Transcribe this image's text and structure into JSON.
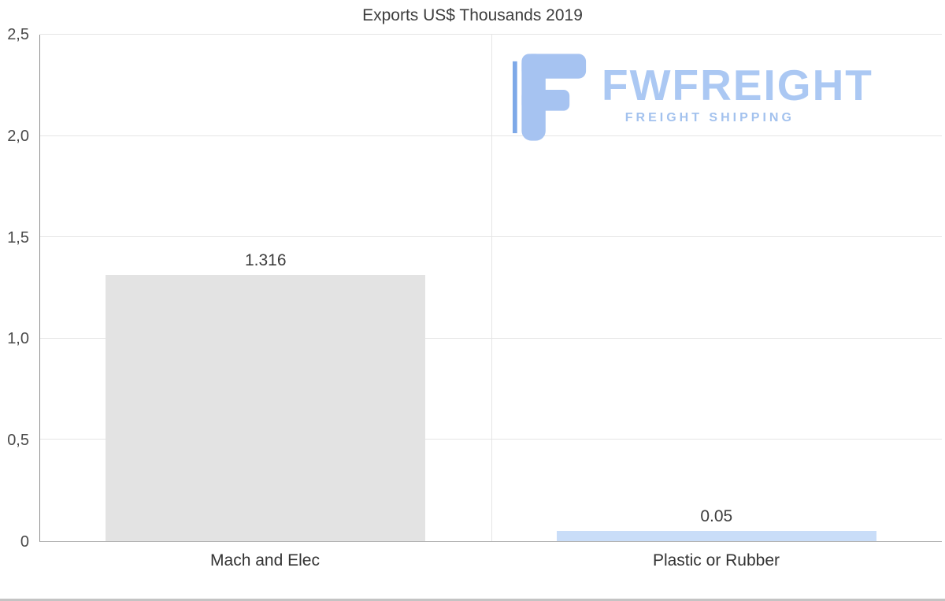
{
  "chart_data": {
    "type": "bar",
    "title": "Exports US$ Thousands 2019",
    "categories": [
      "Mach and Elec",
      "Plastic or Rubber"
    ],
    "values": [
      1.316,
      0.05
    ],
    "ylim": [
      0,
      2.5
    ],
    "grid": "horizontal",
    "yticks": [
      {
        "v": 0.0,
        "label": "0"
      },
      {
        "v": 0.5,
        "label": "0,5"
      },
      {
        "v": 1.0,
        "label": "1,0"
      },
      {
        "v": 1.5,
        "label": "1,5"
      },
      {
        "v": 2.0,
        "label": "2,0"
      },
      {
        "v": 2.5,
        "label": "2,5"
      }
    ],
    "bars": [
      {
        "category": "Mach and Elec",
        "value": 1.316,
        "label": "1.316",
        "color": "#e3e3e3"
      },
      {
        "category": "Plastic or Rubber",
        "value": 0.05,
        "label": "0.05",
        "color": "#c9ddf8"
      }
    ]
  },
  "watermark": {
    "brand": "FWFREIGHT",
    "tagline": "FREIGHT SHIPPING",
    "icon": "fwfreight-f-icon",
    "accent_color": "#a6c3f1"
  }
}
